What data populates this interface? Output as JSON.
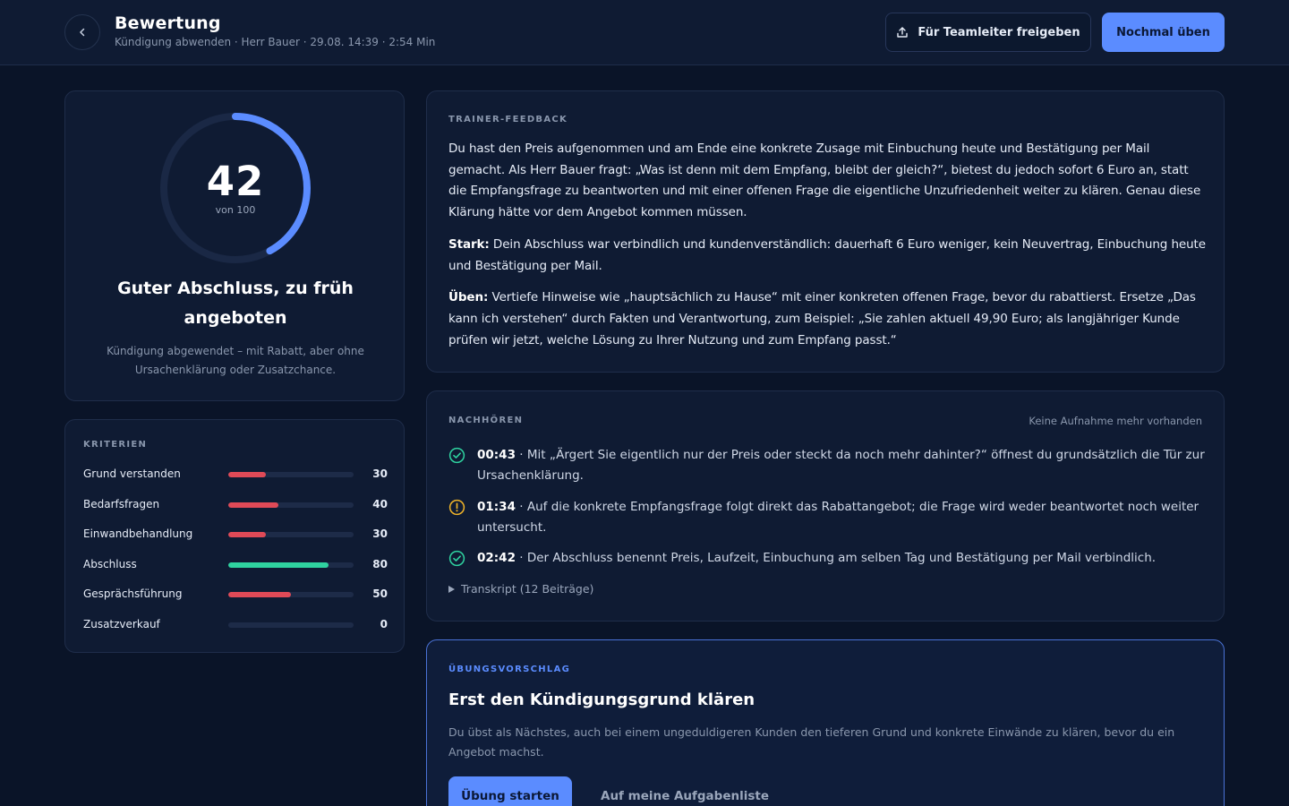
{
  "header": {
    "title": "Bewertung",
    "subtitle": "Kündigung abwenden · Herr Bauer · 29.08. 14:39 · 2:54 Min",
    "share_label": "Für Teamleiter freigeben",
    "retry_label": "Nochmal üben"
  },
  "score": {
    "value": "42",
    "of_label": "von 100",
    "fraction": 0.42,
    "title": "Guter Abschluss, zu früh angeboten",
    "description": "Kündigung abgewendet – mit Rabatt, aber ohne Ursachenklärung oder Zusatzchance.",
    "colors": {
      "arc": "#5b8cff",
      "track": "#1a2845"
    }
  },
  "criteria": {
    "label": "KRITERIEN",
    "items": [
      {
        "name": "Grund verstanden",
        "value": "30",
        "percent": 30,
        "color": "#e04a57"
      },
      {
        "name": "Bedarfsfragen",
        "value": "40",
        "percent": 40,
        "color": "#e04a57"
      },
      {
        "name": "Einwandbehandlung",
        "value": "30",
        "percent": 30,
        "color": "#e04a57"
      },
      {
        "name": "Abschluss",
        "value": "80",
        "percent": 80,
        "color": "#2fd3a0"
      },
      {
        "name": "Gesprächsführung",
        "value": "50",
        "percent": 50,
        "color": "#e04a57"
      },
      {
        "name": "Zusatzverkauf",
        "value": "0",
        "percent": 0,
        "color": "#e04a57"
      }
    ]
  },
  "feedback": {
    "label": "TRAINER-FEEDBACK",
    "intro": "Du hast den Preis aufgenommen und am Ende eine konkrete Zusage mit Einbuchung heute und Bestätigung per Mail gemacht. Als Herr Bauer fragt: „Was ist denn mit dem Empfang, bleibt der gleich?“, bietest du jedoch sofort 6 Euro an, statt die Empfangsfrage zu beantworten und mit einer offenen Frage die eigentliche Unzufriedenheit weiter zu klären. Genau diese Klärung hätte vor dem Angebot kommen müssen.",
    "strong_label": "Stark:",
    "strong_text": " Dein Abschluss war verbindlich und kundenverständlich: dauerhaft 6 Euro weniger, kein Neuvertrag, Einbuchung heute und Bestätigung per Mail.",
    "practice_label": "Üben:",
    "practice_text": " Vertiefe Hinweise wie „hauptsächlich zu Hause“ mit einer konkreten offenen Frage, bevor du rabattierst. Ersetze „Das kann ich verstehen“ durch Fakten und Verantwortung, zum Beispiel: „Sie zahlen aktuell 49,90 Euro; als langjähriger Kunde prüfen wir jetzt, welche Lösung zu Ihrer Nutzung und zum Empfang passt.“"
  },
  "listen": {
    "label": "NACHHÖREN",
    "note": "Keine Aufnahme mehr vorhanden",
    "items": [
      {
        "time": "00:43",
        "text": " · Mit „Ärgert Sie eigentlich nur der Preis oder steckt da noch mehr dahinter?“ öffnest du grundsätzlich die Tür zur Ursachenklärung.",
        "icon": "check-circle-icon",
        "color": "#2fd3a0"
      },
      {
        "time": "01:34",
        "text": " · Auf die konkrete Empfangsfrage folgt direkt das Rabattangebot; die Frage wird weder beantwortet noch weiter untersucht.",
        "icon": "warning-circle-icon",
        "color": "#f0b429"
      },
      {
        "time": "02:42",
        "text": " · Der Abschluss benennt Preis, Laufzeit, Einbuchung am selben Tag und Bestätigung per Mail verbindlich.",
        "icon": "check-circle-icon",
        "color": "#2fd3a0"
      }
    ],
    "transcript_label": "Transkript (12 Beiträge)"
  },
  "exercise": {
    "label": "ÜBUNGSVORSCHLAG",
    "title": "Erst den Kündigungsgrund klären",
    "description": "Du übst als Nächstes, auch bei einem ungeduldigeren Kunden den tieferen Grund und konkrete Einwände zu klären, bevor du ein Angebot machst.",
    "start_label": "Übung starten",
    "list_label": "Auf meine Aufgabenliste"
  }
}
